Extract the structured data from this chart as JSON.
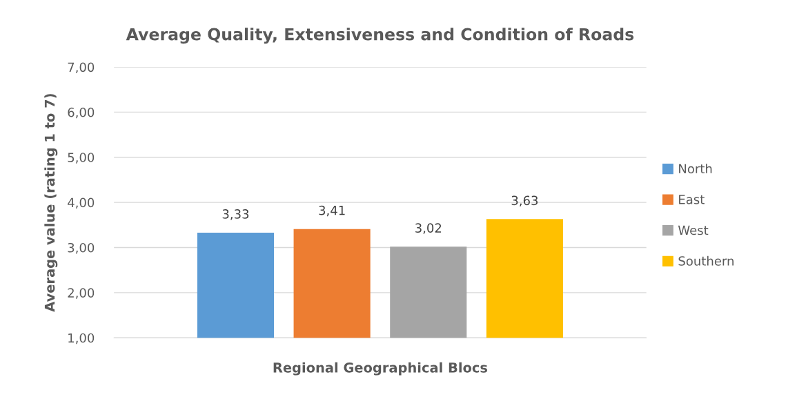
{
  "chart_data": {
    "type": "bar",
    "title": "Average Quality, Extensiveness and Condition of Roads",
    "xlabel": "Regional Geographical Blocs",
    "ylabel": "Average value (rating 1 to 7)",
    "categories": [
      null
    ],
    "series": [
      {
        "name": "North",
        "color": "#5b9bd5",
        "values": [
          3.33
        ],
        "value_labels": [
          "3,33"
        ]
      },
      {
        "name": "East",
        "color": "#ed7d31",
        "values": [
          3.41
        ],
        "value_labels": [
          "3,41"
        ]
      },
      {
        "name": "West",
        "color": "#a5a5a5",
        "values": [
          3.02
        ],
        "value_labels": [
          "3,02"
        ]
      },
      {
        "name": "Southern",
        "color": "#ffc000",
        "values": [
          3.63
        ],
        "value_labels": [
          "3,63"
        ]
      }
    ],
    "ylim": [
      1,
      7
    ],
    "yticks": [
      {
        "value": 1,
        "label": "1,00"
      },
      {
        "value": 2,
        "label": "2,00"
      },
      {
        "value": 3,
        "label": "3,00"
      },
      {
        "value": 4,
        "label": "4,00"
      },
      {
        "value": 5,
        "label": "5,00"
      },
      {
        "value": 6,
        "label": "6,00"
      },
      {
        "value": 7,
        "label": "7,00"
      }
    ],
    "grid": "y",
    "legend": "right"
  }
}
